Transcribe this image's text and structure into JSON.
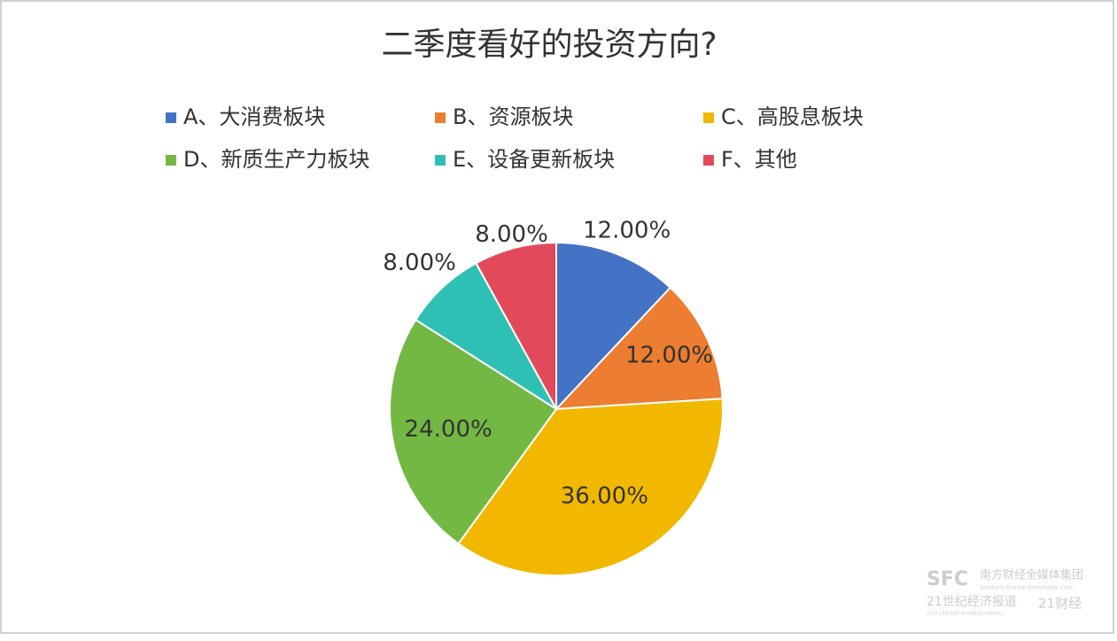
{
  "chart_data": {
    "type": "pie",
    "title": "二季度看好的投资方向?",
    "categories": [
      "A、大消费板块",
      "B、资源板块",
      "C、高股息板块",
      "D、新质生产力板块",
      "E、设备更新板块",
      "F、其他"
    ],
    "values": [
      12,
      12,
      36,
      24,
      8,
      8
    ],
    "value_labels": [
      "12.00%",
      "12.00%",
      "36.00%",
      "24.00%",
      "8.00%",
      "8.00%"
    ],
    "colors": [
      "#4472c4",
      "#ed7d31",
      "#f2b800",
      "#72b843",
      "#2fc0b5",
      "#e24a5b"
    ],
    "legend": "top"
  },
  "watermark": {
    "logo": "SFC",
    "group": "南方财经全媒体集团",
    "group_en": "Southern Finance Omnimedia Corp.",
    "paper": "21世纪经济报道",
    "paper_en": "21ST CENTURY BUSINESS HERALD",
    "app": "21财经"
  }
}
